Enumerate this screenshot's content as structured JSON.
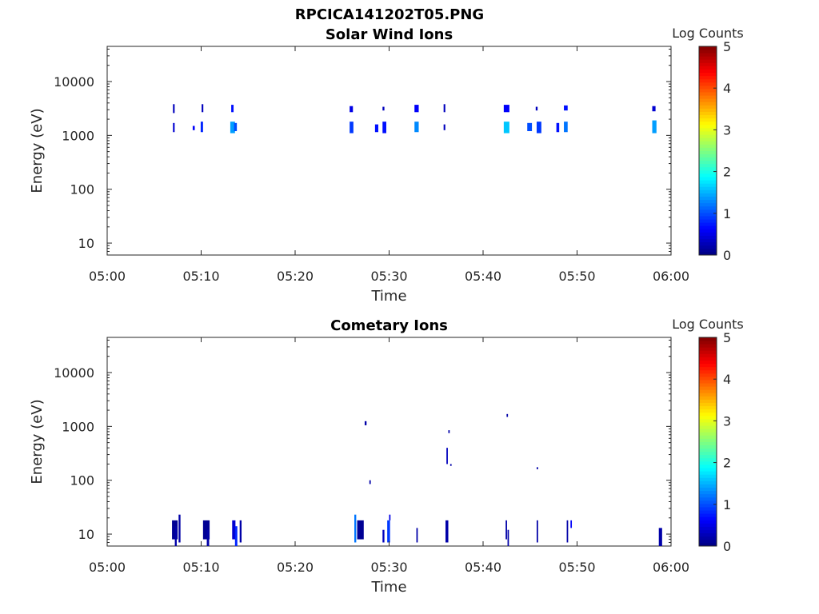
{
  "figure_title": "RPCICA141202T05.PNG",
  "chart_data": [
    {
      "type": "heatmap",
      "title": "Solar Wind Ions",
      "xlabel": "Time",
      "ylabel": "Energy (eV)",
      "x_ticks": [
        "05:00",
        "05:10",
        "05:20",
        "05:30",
        "05:40",
        "05:50",
        "06:00"
      ],
      "x_range_minutes": [
        0,
        60
      ],
      "y_scale": "log",
      "y_range": [
        6,
        45000
      ],
      "y_ticks": [
        "10",
        "100",
        "1000",
        "10000"
      ],
      "colorbar": {
        "label": "Log Counts",
        "range": [
          0,
          5
        ],
        "ticks": [
          "0",
          "1",
          "2",
          "3",
          "4",
          "5"
        ],
        "colormap": "jet"
      },
      "cells": [
        {
          "t": 7.0,
          "dt": 0.18,
          "e_low": 2600,
          "e_high": 3800,
          "log_counts": 0.3
        },
        {
          "t": 7.0,
          "dt": 0.18,
          "e_low": 1150,
          "e_high": 1700,
          "log_counts": 0.4
        },
        {
          "t": 9.1,
          "dt": 0.22,
          "e_low": 1250,
          "e_high": 1500,
          "log_counts": 0.6
        },
        {
          "t": 10.05,
          "dt": 0.18,
          "e_low": 2700,
          "e_high": 3800,
          "log_counts": 0.3
        },
        {
          "t": 9.95,
          "dt": 0.25,
          "e_low": 1150,
          "e_high": 1800,
          "log_counts": 0.8
        },
        {
          "t": 13.2,
          "dt": 0.25,
          "e_low": 2700,
          "e_high": 3700,
          "log_counts": 0.7
        },
        {
          "t": 13.1,
          "dt": 0.5,
          "e_low": 1100,
          "e_high": 1800,
          "log_counts": 1.4
        },
        {
          "t": 13.5,
          "dt": 0.3,
          "e_low": 1200,
          "e_high": 1700,
          "log_counts": 1.0
        },
        {
          "t": 25.8,
          "dt": 0.35,
          "e_low": 2700,
          "e_high": 3500,
          "log_counts": 0.5
        },
        {
          "t": 25.8,
          "dt": 0.4,
          "e_low": 1100,
          "e_high": 1800,
          "log_counts": 0.9
        },
        {
          "t": 28.5,
          "dt": 0.35,
          "e_low": 1150,
          "e_high": 1600,
          "log_counts": 0.7
        },
        {
          "t": 29.3,
          "dt": 0.2,
          "e_low": 2900,
          "e_high": 3400,
          "log_counts": 0.3
        },
        {
          "t": 29.3,
          "dt": 0.4,
          "e_low": 1100,
          "e_high": 1800,
          "log_counts": 0.7
        },
        {
          "t": 32.7,
          "dt": 0.45,
          "e_low": 2700,
          "e_high": 3700,
          "log_counts": 0.6
        },
        {
          "t": 32.7,
          "dt": 0.45,
          "e_low": 1150,
          "e_high": 1800,
          "log_counts": 1.3
        },
        {
          "t": 35.8,
          "dt": 0.18,
          "e_low": 2700,
          "e_high": 3800,
          "log_counts": 0.3
        },
        {
          "t": 35.8,
          "dt": 0.18,
          "e_low": 1250,
          "e_high": 1600,
          "log_counts": 0.3
        },
        {
          "t": 42.2,
          "dt": 0.6,
          "e_low": 2700,
          "e_high": 3700,
          "log_counts": 0.6
        },
        {
          "t": 42.2,
          "dt": 0.6,
          "e_low": 1100,
          "e_high": 1800,
          "log_counts": 1.6
        },
        {
          "t": 44.7,
          "dt": 0.5,
          "e_low": 1200,
          "e_high": 1700,
          "log_counts": 1.0
        },
        {
          "t": 45.6,
          "dt": 0.2,
          "e_low": 2900,
          "e_high": 3400,
          "log_counts": 0.3
        },
        {
          "t": 45.7,
          "dt": 0.5,
          "e_low": 1100,
          "e_high": 1800,
          "log_counts": 0.9
        },
        {
          "t": 47.8,
          "dt": 0.3,
          "e_low": 1150,
          "e_high": 1700,
          "log_counts": 0.7
        },
        {
          "t": 48.6,
          "dt": 0.4,
          "e_low": 2900,
          "e_high": 3600,
          "log_counts": 0.7
        },
        {
          "t": 48.6,
          "dt": 0.4,
          "e_low": 1150,
          "e_high": 1800,
          "log_counts": 1.2
        },
        {
          "t": 58.0,
          "dt": 0.35,
          "e_low": 2800,
          "e_high": 3500,
          "log_counts": 0.4
        },
        {
          "t": 58.0,
          "dt": 0.45,
          "e_low": 1100,
          "e_high": 1900,
          "log_counts": 1.4
        }
      ]
    },
    {
      "type": "heatmap",
      "title": "Cometary Ions",
      "xlabel": "Time",
      "ylabel": "Energy (eV)",
      "x_ticks": [
        "05:00",
        "05:10",
        "05:20",
        "05:30",
        "05:40",
        "05:50",
        "06:00"
      ],
      "x_range_minutes": [
        0,
        60
      ],
      "y_scale": "log",
      "y_range": [
        6,
        45000
      ],
      "y_ticks": [
        "10",
        "100",
        "1000",
        "10000"
      ],
      "colorbar": {
        "label": "Log Counts",
        "range": [
          0,
          5
        ],
        "ticks": [
          "0",
          "1",
          "2",
          "3",
          "4",
          "5"
        ],
        "colormap": "jet"
      },
      "cells": [
        {
          "t": 6.9,
          "dt": 0.6,
          "e_low": 8,
          "e_high": 18,
          "log_counts": 0.1
        },
        {
          "t": 7.2,
          "dt": 0.2,
          "e_low": 6,
          "e_high": 14,
          "log_counts": 0.2
        },
        {
          "t": 7.6,
          "dt": 0.2,
          "e_low": 7,
          "e_high": 23,
          "log_counts": 0.2
        },
        {
          "t": 10.2,
          "dt": 0.7,
          "e_low": 8,
          "e_high": 18,
          "log_counts": 0.1
        },
        {
          "t": 10.6,
          "dt": 0.25,
          "e_low": 6,
          "e_high": 12,
          "log_counts": 0.2
        },
        {
          "t": 13.3,
          "dt": 0.35,
          "e_low": 8,
          "e_high": 18,
          "log_counts": 0.4
        },
        {
          "t": 13.6,
          "dt": 0.25,
          "e_low": 6,
          "e_high": 14,
          "log_counts": 0.8
        },
        {
          "t": 14.1,
          "dt": 0.2,
          "e_low": 7,
          "e_high": 18,
          "log_counts": 0.2
        },
        {
          "t": 26.3,
          "dt": 0.2,
          "e_low": 7,
          "e_high": 23,
          "log_counts": 1.2
        },
        {
          "t": 26.6,
          "dt": 0.7,
          "e_low": 8,
          "e_high": 18,
          "log_counts": 0.1
        },
        {
          "t": 27.4,
          "dt": 0.2,
          "e_low": 1050,
          "e_high": 1250,
          "log_counts": 0.2
        },
        {
          "t": 27.9,
          "dt": 0.15,
          "e_low": 85,
          "e_high": 100,
          "log_counts": 0.2
        },
        {
          "t": 29.3,
          "dt": 0.2,
          "e_low": 7,
          "e_high": 12,
          "log_counts": 0.3
        },
        {
          "t": 29.8,
          "dt": 0.3,
          "e_low": 7,
          "e_high": 18,
          "log_counts": 0.9
        },
        {
          "t": 30.0,
          "dt": 0.15,
          "e_low": 18,
          "e_high": 23,
          "log_counts": 0.5
        },
        {
          "t": 32.9,
          "dt": 0.15,
          "e_low": 7,
          "e_high": 13,
          "log_counts": 0.2
        },
        {
          "t": 36.0,
          "dt": 0.3,
          "e_low": 7,
          "e_high": 18,
          "log_counts": 0.2
        },
        {
          "t": 36.1,
          "dt": 0.15,
          "e_low": 200,
          "e_high": 400,
          "log_counts": 0.3
        },
        {
          "t": 36.3,
          "dt": 0.15,
          "e_low": 750,
          "e_high": 850,
          "log_counts": 0.2
        },
        {
          "t": 36.5,
          "dt": 0.15,
          "e_low": 185,
          "e_high": 200,
          "log_counts": 0.2
        },
        {
          "t": 42.4,
          "dt": 0.15,
          "e_low": 8,
          "e_high": 18,
          "log_counts": 0.2
        },
        {
          "t": 42.5,
          "dt": 0.15,
          "e_low": 1500,
          "e_high": 1700,
          "log_counts": 0.2
        },
        {
          "t": 42.6,
          "dt": 0.15,
          "e_low": 6,
          "e_high": 12,
          "log_counts": 0.2
        },
        {
          "t": 45.7,
          "dt": 0.15,
          "e_low": 7,
          "e_high": 18,
          "log_counts": 0.2
        },
        {
          "t": 45.7,
          "dt": 0.15,
          "e_low": 160,
          "e_high": 175,
          "log_counts": 0.2
        },
        {
          "t": 48.9,
          "dt": 0.15,
          "e_low": 7,
          "e_high": 18,
          "log_counts": 0.2
        },
        {
          "t": 49.3,
          "dt": 0.15,
          "e_low": 13,
          "e_high": 18,
          "log_counts": 0.6
        },
        {
          "t": 58.7,
          "dt": 0.35,
          "e_low": 6,
          "e_high": 13,
          "log_counts": 0.2
        }
      ]
    }
  ]
}
